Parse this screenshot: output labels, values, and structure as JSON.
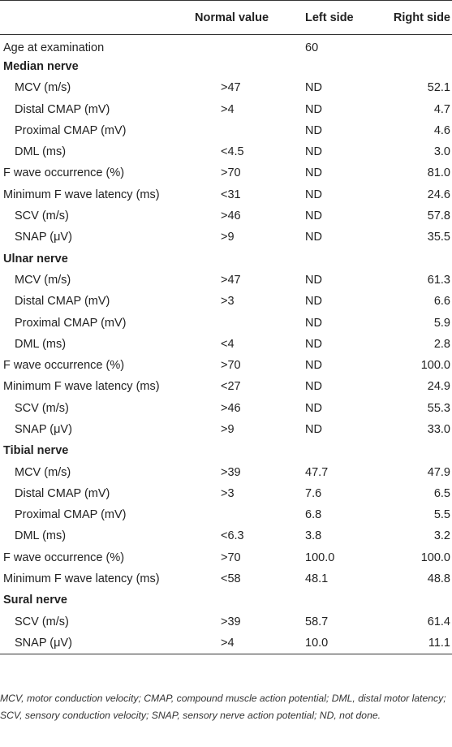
{
  "headers": {
    "label": "",
    "normal": "Normal value",
    "left": "Left side",
    "right": "Right side"
  },
  "rows": [
    {
      "type": "age",
      "label": "Age at examination",
      "normal": "",
      "left": "60",
      "right": ""
    },
    {
      "type": "section",
      "label": "Median nerve",
      "normal": "",
      "left": "",
      "right": ""
    },
    {
      "type": "sub",
      "label": "MCV (m/s)",
      "normal": ">47",
      "left": "ND",
      "right": "52.1"
    },
    {
      "type": "sub",
      "label": "Distal CMAP (mV)",
      "normal": ">4",
      "left": "ND",
      "right": "4.7"
    },
    {
      "type": "sub",
      "label": "Proximal CMAP (mV)",
      "normal": "",
      "left": "ND",
      "right": "4.6"
    },
    {
      "type": "sub",
      "label": "DML (ms)",
      "normal": "<4.5",
      "left": "ND",
      "right": "3.0"
    },
    {
      "type": "main",
      "label": "F wave occurrence (%)",
      "normal": ">70",
      "left": "ND",
      "right": "81.0"
    },
    {
      "type": "main",
      "label": "Minimum F wave latency (ms)",
      "normal": "<31",
      "left": "ND",
      "right": "24.6"
    },
    {
      "type": "sub",
      "label": "SCV (m/s)",
      "normal": ">46",
      "left": "ND",
      "right": "57.8"
    },
    {
      "type": "sub",
      "label": "SNAP (μV)",
      "normal": ">9",
      "left": "ND",
      "right": "35.5"
    },
    {
      "type": "section",
      "label": "Ulnar nerve",
      "normal": "",
      "left": "",
      "right": ""
    },
    {
      "type": "sub",
      "label": "MCV (m/s)",
      "normal": ">47",
      "left": "ND",
      "right": "61.3"
    },
    {
      "type": "sub",
      "label": "Distal CMAP (mV)",
      "normal": ">3",
      "left": "ND",
      "right": "6.6"
    },
    {
      "type": "sub",
      "label": "Proximal CMAP (mV)",
      "normal": "",
      "left": "ND",
      "right": "5.9"
    },
    {
      "type": "sub",
      "label": "DML (ms)",
      "normal": "<4",
      "left": "ND",
      "right": "2.8"
    },
    {
      "type": "main",
      "label": "F wave occurrence (%)",
      "normal": ">70",
      "left": "ND",
      "right": "100.0"
    },
    {
      "type": "main",
      "label": "Minimum F wave latency (ms)",
      "normal": "<27",
      "left": "ND",
      "right": "24.9"
    },
    {
      "type": "sub",
      "label": "SCV (m/s)",
      "normal": ">46",
      "left": "ND",
      "right": "55.3"
    },
    {
      "type": "sub",
      "label": "SNAP (μV)",
      "normal": ">9",
      "left": "ND",
      "right": "33.0"
    },
    {
      "type": "section",
      "label": "Tibial nerve",
      "normal": "",
      "left": "",
      "right": ""
    },
    {
      "type": "sub",
      "label": "MCV (m/s)",
      "normal": ">39",
      "left": "47.7",
      "right": "47.9"
    },
    {
      "type": "sub",
      "label": "Distal CMAP (mV)",
      "normal": ">3",
      "left": "7.6",
      "right": "6.5"
    },
    {
      "type": "sub",
      "label": "Proximal CMAP (mV)",
      "normal": "",
      "left": "6.8",
      "right": "5.5"
    },
    {
      "type": "sub",
      "label": "DML (ms)",
      "normal": "<6.3",
      "left": "3.8",
      "right": "3.2"
    },
    {
      "type": "main",
      "label": "F wave occurrence (%)",
      "normal": ">70",
      "left": "100.0",
      "right": "100.0"
    },
    {
      "type": "main",
      "label": "Minimum F wave latency (ms)",
      "normal": "<58",
      "left": "48.1",
      "right": "48.8"
    },
    {
      "type": "section",
      "label": "Sural nerve",
      "normal": "",
      "left": "",
      "right": ""
    },
    {
      "type": "sub",
      "label": "SCV (m/s)",
      "normal": ">39",
      "left": "58.7",
      "right": "61.4"
    },
    {
      "type": "sub",
      "label": "SNAP (μV)",
      "normal": ">4",
      "left": "10.0",
      "right": "11.1"
    }
  ],
  "footnote": "MCV, motor conduction velocity; CMAP, compound muscle action potential; DML, distal motor latency; SCV, sensory conduction velocity; SNAP, sensory nerve action potential; ND, not done."
}
